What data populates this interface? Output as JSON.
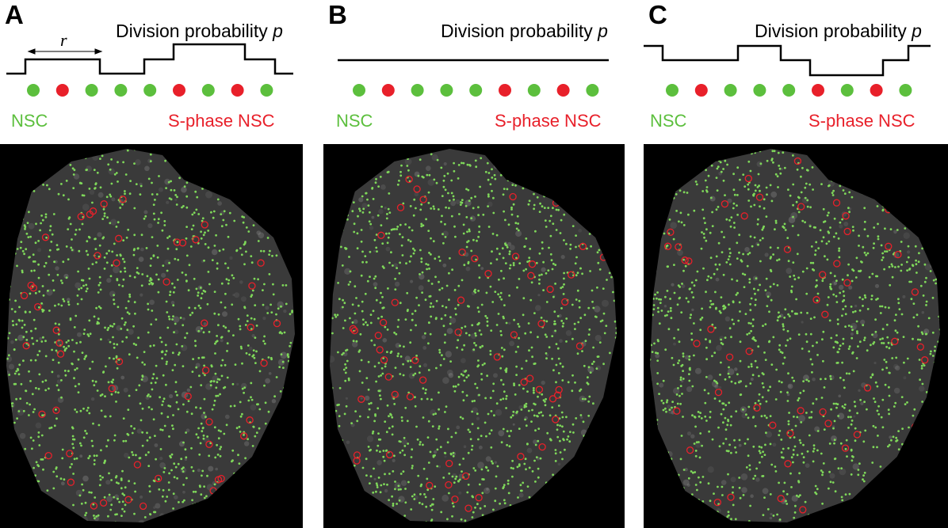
{
  "colors": {
    "nsc": "#5cbf3d",
    "sphase": "#e8202a",
    "marker_green": "#7fd85a",
    "marker_red": "#e8202a",
    "tissue": "#3a3a3a",
    "background": "#000000"
  },
  "panels": [
    {
      "letter": "A",
      "title": "Division probability",
      "title_var": "p",
      "range_label": "r",
      "nsc_label": "NSC",
      "sphase_label": "S-phase NSC",
      "cell_states": [
        "NSC",
        "S-phase NSC",
        "NSC",
        "NSC",
        "NSC",
        "S-phase NSC",
        "NSC",
        "S-phase NSC",
        "NSC"
      ],
      "probability_profile": "varying",
      "seed": 11,
      "red_count": 58
    },
    {
      "letter": "B",
      "title": "Division probability",
      "title_var": "p",
      "nsc_label": "NSC",
      "sphase_label": "S-phase NSC",
      "cell_states": [
        "NSC",
        "S-phase NSC",
        "NSC",
        "NSC",
        "NSC",
        "S-phase NSC",
        "NSC",
        "S-phase NSC",
        "NSC"
      ],
      "probability_profile": "constant",
      "seed": 23,
      "red_count": 60
    },
    {
      "letter": "C",
      "title": "Division probability",
      "title_var": "p",
      "nsc_label": "NSC",
      "sphase_label": "S-phase NSC",
      "cell_states": [
        "NSC",
        "S-phase NSC",
        "NSC",
        "NSC",
        "NSC",
        "S-phase NSC",
        "NSC",
        "S-phase NSC",
        "NSC"
      ],
      "probability_profile": "varying",
      "seed": 37,
      "red_count": 58
    }
  ]
}
